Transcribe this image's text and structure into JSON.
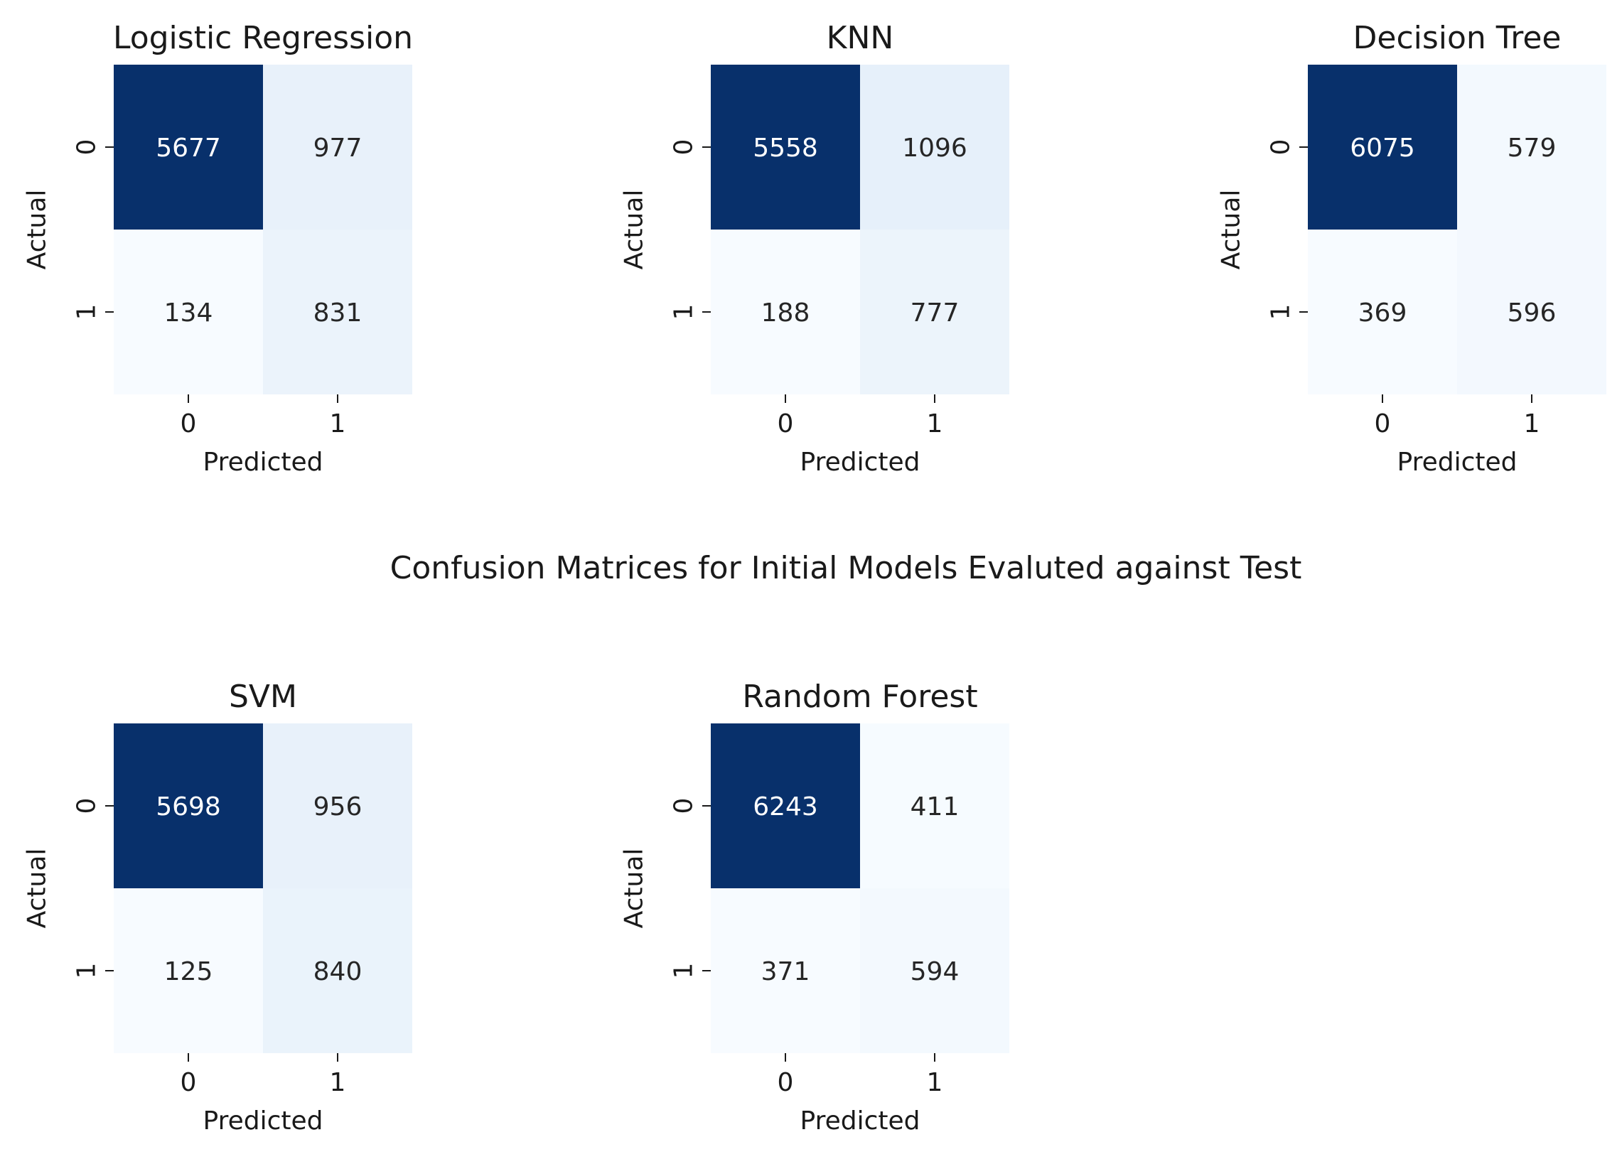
{
  "figure_title": "Confusion Matrices for Initial Models Evaluted against Test",
  "colormap": {
    "low": "#f7fbff",
    "mid": "#c6dbef",
    "high": "#08306b",
    "text_dark": "#262626",
    "text_light": "#ffffff"
  },
  "chart_data": [
    {
      "type": "heatmap",
      "title": "Logistic Regression",
      "xlabel": "Predicted",
      "ylabel": "Actual",
      "x_ticks": [
        "0",
        "1"
      ],
      "y_ticks": [
        "0",
        "1"
      ],
      "values": [
        [
          5677,
          977
        ],
        [
          134,
          831
        ]
      ]
    },
    {
      "type": "heatmap",
      "title": "KNN",
      "xlabel": "Predicted",
      "ylabel": "Actual",
      "x_ticks": [
        "0",
        "1"
      ],
      "y_ticks": [
        "0",
        "1"
      ],
      "values": [
        [
          5558,
          1096
        ],
        [
          188,
          777
        ]
      ]
    },
    {
      "type": "heatmap",
      "title": "Decision Tree",
      "xlabel": "Predicted",
      "ylabel": "Actual",
      "x_ticks": [
        "0",
        "1"
      ],
      "y_ticks": [
        "0",
        "1"
      ],
      "values": [
        [
          6075,
          579
        ],
        [
          369,
          596
        ]
      ]
    },
    {
      "type": "heatmap",
      "title": "SVM",
      "xlabel": "Predicted",
      "ylabel": "Actual",
      "x_ticks": [
        "0",
        "1"
      ],
      "y_ticks": [
        "0",
        "1"
      ],
      "values": [
        [
          5698,
          956
        ],
        [
          125,
          840
        ]
      ]
    },
    {
      "type": "heatmap",
      "title": "Random Forest",
      "xlabel": "Predicted",
      "ylabel": "Actual",
      "x_ticks": [
        "0",
        "1"
      ],
      "y_ticks": [
        "0",
        "1"
      ],
      "values": [
        [
          6243,
          411
        ],
        [
          371,
          594
        ]
      ]
    }
  ]
}
